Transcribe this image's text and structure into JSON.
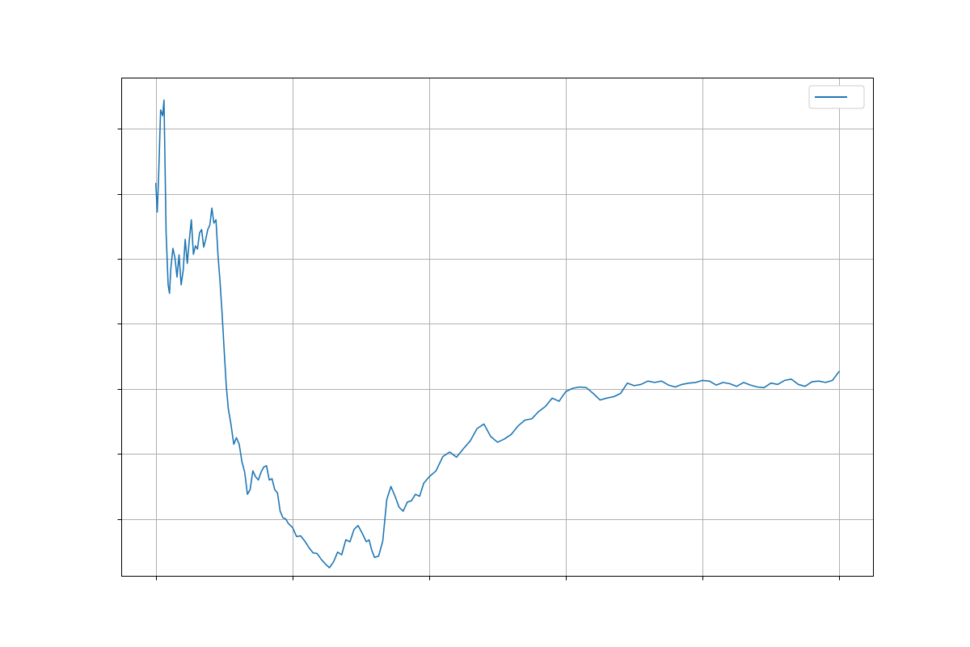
{
  "chart_data": {
    "type": "line",
    "title": "",
    "xlabel": "",
    "ylabel": "",
    "xlim": [
      -0.25,
      5.25
    ],
    "ylim": [
      -0.88,
      6.78
    ],
    "xticks": [
      0,
      1,
      2,
      3,
      4,
      5
    ],
    "yticks": [
      0,
      1,
      2,
      3,
      4,
      5,
      6
    ],
    "xtick_labels": [],
    "ytick_labels": [],
    "grid": true,
    "legend": {
      "position": "top-right",
      "entries": [
        ""
      ]
    },
    "series": [
      {
        "color": "#1f77b4",
        "x": [
          0.0,
          0.01,
          0.02,
          0.035,
          0.05,
          0.06,
          0.075,
          0.09,
          0.1,
          0.11,
          0.125,
          0.14,
          0.155,
          0.17,
          0.185,
          0.2,
          0.215,
          0.23,
          0.245,
          0.26,
          0.275,
          0.29,
          0.305,
          0.32,
          0.335,
          0.35,
          0.365,
          0.38,
          0.395,
          0.41,
          0.425,
          0.44,
          0.455,
          0.47,
          0.485,
          0.5,
          0.515,
          0.53,
          0.55,
          0.57,
          0.59,
          0.61,
          0.63,
          0.65,
          0.67,
          0.69,
          0.71,
          0.73,
          0.75,
          0.77,
          0.79,
          0.81,
          0.83,
          0.85,
          0.87,
          0.89,
          0.91,
          0.93,
          0.95,
          0.97,
          1.0,
          1.03,
          1.06,
          1.09,
          1.12,
          1.15,
          1.18,
          1.21,
          1.24,
          1.27,
          1.3,
          1.33,
          1.36,
          1.39,
          1.42,
          1.45,
          1.48,
          1.51,
          1.54,
          1.56,
          1.58,
          1.6,
          1.63,
          1.66,
          1.69,
          1.72,
          1.75,
          1.78,
          1.81,
          1.84,
          1.87,
          1.9,
          1.93,
          1.96,
          2.0,
          2.05,
          2.1,
          2.15,
          2.2,
          2.25,
          2.3,
          2.35,
          2.4,
          2.45,
          2.5,
          2.55,
          2.6,
          2.65,
          2.7,
          2.75,
          2.8,
          2.85,
          2.9,
          2.95,
          3.0,
          3.05,
          3.1,
          3.15,
          3.2,
          3.25,
          3.3,
          3.35,
          3.4,
          3.45,
          3.5,
          3.55,
          3.6,
          3.65,
          3.7,
          3.75,
          3.8,
          3.85,
          3.9,
          3.95,
          4.0,
          4.05,
          4.1,
          4.15,
          4.2,
          4.25,
          4.3,
          4.35,
          4.4,
          4.45,
          4.5,
          4.55,
          4.6,
          4.65,
          4.7,
          4.75,
          4.8,
          4.85,
          4.9,
          4.95,
          5.0
        ],
        "y": [
          5.16,
          4.72,
          5.26,
          6.29,
          6.2,
          6.44,
          4.4,
          3.6,
          3.47,
          3.86,
          4.16,
          4.02,
          3.72,
          4.06,
          3.6,
          3.82,
          4.3,
          3.93,
          4.29,
          4.6,
          4.07,
          4.2,
          4.15,
          4.4,
          4.45,
          4.18,
          4.3,
          4.45,
          4.52,
          4.78,
          4.55,
          4.6,
          4.05,
          3.65,
          3.15,
          2.6,
          2.05,
          1.7,
          1.45,
          1.15,
          1.25,
          1.15,
          0.88,
          0.72,
          0.38,
          0.45,
          0.74,
          0.65,
          0.6,
          0.72,
          0.8,
          0.82,
          0.6,
          0.62,
          0.45,
          0.4,
          0.12,
          0.02,
          0.0,
          -0.07,
          -0.13,
          -0.27,
          -0.26,
          -0.34,
          -0.44,
          -0.52,
          -0.53,
          -0.62,
          -0.69,
          -0.75,
          -0.66,
          -0.51,
          -0.55,
          -0.32,
          -0.35,
          -0.16,
          -0.1,
          -0.22,
          -0.35,
          -0.32,
          -0.48,
          -0.59,
          -0.57,
          -0.34,
          0.3,
          0.5,
          0.35,
          0.18,
          0.12,
          0.26,
          0.28,
          0.38,
          0.35,
          0.55,
          0.65,
          0.74,
          0.96,
          1.03,
          0.95,
          1.08,
          1.2,
          1.39,
          1.46,
          1.27,
          1.18,
          1.23,
          1.3,
          1.43,
          1.52,
          1.54,
          1.65,
          1.73,
          1.86,
          1.81,
          1.96,
          2.01,
          2.03,
          2.02,
          1.93,
          1.83,
          1.86,
          1.88,
          1.93,
          2.09,
          2.05,
          2.07,
          2.12,
          2.1,
          2.12,
          2.06,
          2.03,
          2.07,
          2.09,
          2.1,
          2.13,
          2.12,
          2.06,
          2.1,
          2.08,
          2.04,
          2.1,
          2.06,
          2.03,
          2.02,
          2.09,
          2.07,
          2.13,
          2.15,
          2.07,
          2.04,
          2.11,
          2.12,
          2.1,
          2.13,
          2.27
        ]
      }
    ]
  }
}
